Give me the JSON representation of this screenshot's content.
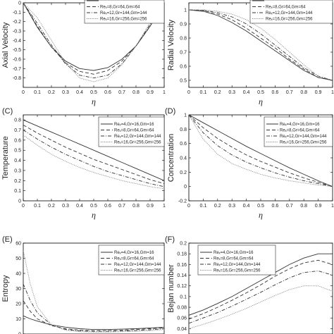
{
  "series_names": [
    "Reₓ=4,Gr=16,Gm=16",
    "Reₓ=8,Gr=64,Gm=64",
    "Reₓ=12,Gr=144,Gm=144",
    "Reₓ=16,Gr=256,Gm=256"
  ],
  "series_styles": [
    {
      "color": "#333333",
      "dash": ""
    },
    {
      "color": "#333333",
      "dash": "5,3"
    },
    {
      "color": "#333333",
      "dash": "5,2,1,2"
    },
    {
      "color": "#8a8a8a",
      "dash": "1.2,1.2"
    }
  ],
  "chart_data": [
    {
      "panel_label": "",
      "type": "line",
      "title": "",
      "xlabel": "η",
      "ylabel": "Axial Velocity",
      "xlim": [
        0,
        1
      ],
      "ylim": [
        -0.9,
        0
      ],
      "xticks": [
        "0",
        "0.1",
        "0.2",
        "0.3",
        "0.4",
        "0.5",
        "0.6",
        "0.7",
        "0.8",
        "0.9",
        "1"
      ],
      "yticks": [
        0,
        -0.1,
        -0.2,
        -0.3,
        -0.4,
        -0.5,
        -0.6,
        -0.7,
        -0.8
      ],
      "ytick_labels": [
        "0",
        "-0.1",
        "-0.2",
        "-0.3",
        "-0.4",
        "-0.5",
        "-0.6",
        "-0.7",
        "-0.8"
      ],
      "legend_entries": [
        "",
        "Reₓ=8,Gr=64,Gm=64",
        "Reₓ=12,Gr=144,Gm=144",
        "Reₓ=16,Gr=256,Gm=256"
      ],
      "legend_position": "top-right",
      "x": [
        0,
        0.1,
        0.2,
        0.3,
        0.4,
        0.5,
        0.6,
        0.7,
        0.8,
        0.9,
        1
      ],
      "series": [
        {
          "values": [
            0,
            -0.26,
            -0.47,
            -0.62,
            -0.7,
            -0.72,
            -0.69,
            -0.6,
            -0.46,
            -0.25,
            0
          ]
        },
        {
          "values": [
            0,
            -0.25,
            -0.47,
            -0.64,
            -0.73,
            -0.76,
            -0.72,
            -0.62,
            -0.46,
            -0.25,
            0
          ]
        },
        {
          "values": [
            0,
            -0.22,
            -0.45,
            -0.65,
            -0.77,
            -0.8,
            -0.77,
            -0.65,
            -0.46,
            -0.23,
            0
          ]
        },
        {
          "values": [
            0,
            -0.16,
            -0.4,
            -0.64,
            -0.8,
            -0.84,
            -0.8,
            -0.66,
            -0.46,
            -0.21,
            0
          ]
        }
      ]
    },
    {
      "panel_label": "",
      "type": "line",
      "title": "",
      "xlabel": "η",
      "ylabel": "Radial Velocity",
      "xlim": [
        0,
        1
      ],
      "ylim": [
        0.45,
        1.05
      ],
      "xticks": [
        "0",
        "0.1",
        "0.2",
        "0.3",
        "0.4",
        "0.5",
        "0.6",
        "0.7",
        "0.8",
        "0.9",
        "1"
      ],
      "yticks": [
        0.5,
        0.6,
        0.7,
        0.8,
        0.9,
        1
      ],
      "ytick_labels": [
        "0.5",
        "0.6",
        "0.7",
        "0.8",
        "0.9",
        "1"
      ],
      "legend_entries": [
        "",
        "Reₓ=8,Gr=64,Gm=64",
        "Reₓ=12,Gr=144,Gm=144",
        "Reₓ=16,Gr=256,Gm=256"
      ],
      "legend_position": "top-right",
      "x": [
        0,
        0.1,
        0.2,
        0.3,
        0.4,
        0.5,
        0.6,
        0.7,
        0.8,
        0.9,
        1
      ],
      "series": [
        {
          "values": [
            1.0,
            0.99,
            0.96,
            0.91,
            0.85,
            0.78,
            0.71,
            0.64,
            0.57,
            0.52,
            0.5
          ]
        },
        {
          "values": [
            1.0,
            0.995,
            0.97,
            0.93,
            0.87,
            0.8,
            0.73,
            0.65,
            0.58,
            0.52,
            0.5
          ]
        },
        {
          "values": [
            1.0,
            0.998,
            0.98,
            0.95,
            0.9,
            0.83,
            0.75,
            0.67,
            0.59,
            0.53,
            0.5
          ]
        },
        {
          "values": [
            1.0,
            1.0,
            0.99,
            0.97,
            0.93,
            0.87,
            0.79,
            0.7,
            0.61,
            0.53,
            0.5
          ]
        }
      ]
    },
    {
      "panel_label": "(C)",
      "type": "line",
      "title": "",
      "xlabel": "η",
      "ylabel": "Temperature",
      "xlim": [
        0,
        1
      ],
      "ylim": [
        0,
        0.85
      ],
      "xticks": [
        "0",
        "0.1",
        "0.2",
        "0.3",
        "0.4",
        "0.5",
        "0.6",
        "0.7",
        "0.8",
        "0.9",
        "1"
      ],
      "yticks": [
        0,
        0.1,
        0.2,
        0.3,
        0.4,
        0.5,
        0.6,
        0.7,
        0.8
      ],
      "ytick_labels": [
        "0",
        "0.1",
        "0.2",
        "0.3",
        "0.4",
        "0.5",
        "0.6",
        "0.7",
        "0.8"
      ],
      "legend_entries": [
        "Reₓ=4,Gr=16,Gm=16",
        "Reₓ=8,Gr=64,Gm=64",
        "Reₓ=12,Gr=144,Gm=144",
        "Reₓ=16,Gr=256,Gm=256"
      ],
      "legend_position": "top-right",
      "x": [
        0,
        0.1,
        0.2,
        0.3,
        0.4,
        0.5,
        0.6,
        0.7,
        0.8,
        0.9,
        1
      ],
      "series": [
        {
          "values": [
            0.8,
            0.74,
            0.68,
            0.62,
            0.56,
            0.5,
            0.44,
            0.38,
            0.32,
            0.26,
            0.2
          ]
        },
        {
          "values": [
            0.75,
            0.67,
            0.6,
            0.53,
            0.47,
            0.41,
            0.36,
            0.31,
            0.26,
            0.21,
            0.17
          ]
        },
        {
          "values": [
            0.7,
            0.61,
            0.53,
            0.46,
            0.4,
            0.34,
            0.29,
            0.25,
            0.21,
            0.17,
            0.14
          ]
        },
        {
          "values": [
            0.65,
            0.55,
            0.46,
            0.39,
            0.33,
            0.28,
            0.24,
            0.2,
            0.17,
            0.14,
            0.12
          ]
        }
      ]
    },
    {
      "panel_label": "(D)",
      "type": "line",
      "title": "",
      "xlabel": "η",
      "ylabel": "Concentration",
      "xlim": [
        0,
        1
      ],
      "ylim": [
        -0.2,
        1
      ],
      "xticks": [
        "0",
        "0.1",
        "0.2",
        "0.3",
        "0.4",
        "0.5",
        "0.6",
        "0.7",
        "0.8",
        "0.9",
        "1"
      ],
      "yticks": [
        -0.2,
        0,
        0.2,
        0.4,
        0.6,
        0.8,
        1
      ],
      "ytick_labels": [
        "-0.2",
        "0",
        "0.2",
        "0.4",
        "0.6",
        "0.8",
        "1"
      ],
      "legend_entries": [
        "Reₓ=4,Gr=16,Gm=16",
        "Reₓ=8,Gr=64,Gm=64",
        "Reₓ=12,Gr=144,Gm=144",
        "Reₓ=16,Gr=256,Gm=256"
      ],
      "legend_position": "top-right",
      "x": [
        0,
        0.1,
        0.2,
        0.3,
        0.4,
        0.5,
        0.6,
        0.7,
        0.8,
        0.9,
        1
      ],
      "series": [
        {
          "values": [
            1.0,
            0.89,
            0.78,
            0.67,
            0.56,
            0.46,
            0.36,
            0.26,
            0.17,
            0.08,
            0.0
          ]
        },
        {
          "values": [
            1.0,
            0.82,
            0.67,
            0.55,
            0.44,
            0.35,
            0.27,
            0.19,
            0.12,
            0.06,
            0.0
          ]
        },
        {
          "values": [
            1.0,
            0.75,
            0.57,
            0.44,
            0.34,
            0.26,
            0.19,
            0.13,
            0.08,
            0.04,
            0.0
          ]
        },
        {
          "values": [
            1.0,
            0.66,
            0.45,
            0.32,
            0.24,
            0.17,
            0.12,
            0.08,
            0.05,
            0.02,
            0.0
          ]
        }
      ]
    },
    {
      "panel_label": "(E)",
      "type": "line",
      "title": "",
      "xlabel": "",
      "ylabel": "Entropy",
      "xlim": [
        0,
        1
      ],
      "ylim": [
        0,
        60
      ],
      "xticks": [],
      "yticks": [
        0,
        10,
        20,
        30,
        40,
        50,
        60
      ],
      "ytick_labels": [
        "0",
        "10",
        "20",
        "30",
        "40",
        "50",
        "60"
      ],
      "legend_entries": [
        "Reₓ=4,Gr=16,Gm=16",
        "Reₓ=8,Gr=64,Gm=64",
        "Reₓ=12,Gr=144,Gm=144",
        "Reₓ=16,Gr=256,Gm=256"
      ],
      "legend_position": "top-right",
      "x": [
        0,
        0.05,
        0.1,
        0.2,
        0.3,
        0.4,
        0.5,
        0.6,
        0.7,
        0.8,
        0.9,
        1
      ],
      "series": [
        {
          "values": [
            12,
            10,
            8.5,
            6,
            4.5,
            3.5,
            3,
            3,
            3.2,
            3.5,
            4,
            4.5
          ]
        },
        {
          "values": [
            22,
            15,
            10,
            5.5,
            3.5,
            2.5,
            2.2,
            2.3,
            2.5,
            3,
            3.5,
            4
          ]
        },
        {
          "values": [
            33,
            22,
            14,
            6,
            3,
            2,
            1.8,
            1.8,
            2,
            2.3,
            2.8,
            3.5
          ]
        },
        {
          "values": [
            55,
            33,
            18,
            6,
            2.5,
            1.5,
            1.2,
            1.2,
            1.5,
            1.8,
            2.2,
            3
          ]
        }
      ]
    },
    {
      "panel_label": "(F)",
      "type": "line",
      "title": "",
      "xlabel": "",
      "ylabel": "Bejan number",
      "xlim": [
        0,
        1
      ],
      "ylim": [
        0.03,
        0.2
      ],
      "xticks": [],
      "yticks": [
        0.04,
        0.06,
        0.08,
        0.1,
        0.12,
        0.14,
        0.16,
        0.18,
        0.2
      ],
      "ytick_labels": [
        "0.04",
        "0.06",
        "0.08",
        "0.1",
        "0.12",
        "0.14",
        "0.16",
        "0.18",
        "0.2"
      ],
      "legend_entries": [
        "Reₓ=4,Gr=16,Gm=16",
        "Reₓ=8,Gr=64,Gm=64",
        "Reₓ=12,Gr=144,Gm=144",
        "Reₓ=16,Gr=256,Gm=256"
      ],
      "legend_position": "top-left",
      "x": [
        0,
        0.1,
        0.2,
        0.3,
        0.4,
        0.5,
        0.6,
        0.7,
        0.8,
        0.9,
        1
      ],
      "series": [
        {
          "values": [
            0.065,
            0.075,
            0.087,
            0.1,
            0.115,
            0.13,
            0.145,
            0.16,
            0.172,
            0.18,
            0.18
          ]
        },
        {
          "values": [
            0.058,
            0.068,
            0.08,
            0.093,
            0.107,
            0.122,
            0.138,
            0.152,
            0.163,
            0.168,
            0.16
          ]
        },
        {
          "values": [
            0.05,
            0.06,
            0.07,
            0.082,
            0.095,
            0.108,
            0.122,
            0.135,
            0.145,
            0.148,
            0.14
          ]
        },
        {
          "values": [
            0.04,
            0.048,
            0.057,
            0.067,
            0.078,
            0.09,
            0.102,
            0.113,
            0.12,
            0.12,
            0.11
          ]
        }
      ]
    }
  ]
}
